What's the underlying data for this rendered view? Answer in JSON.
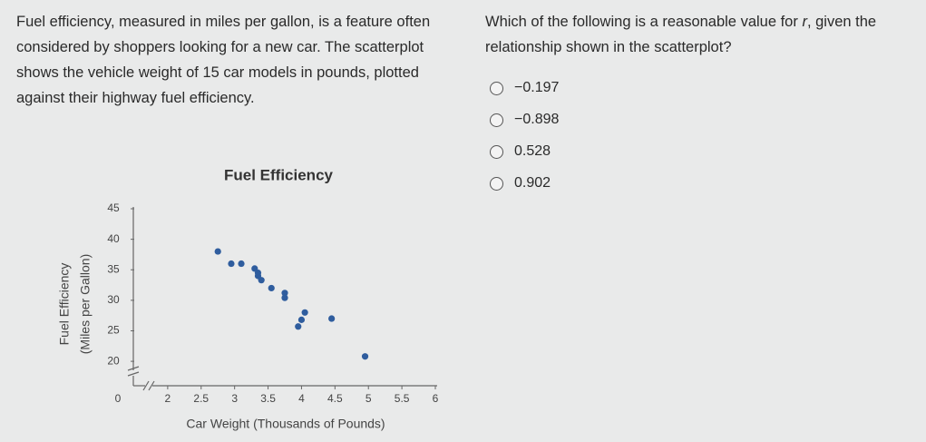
{
  "passage": "Fuel efficiency, measured in miles per gallon, is a feature often considered by shoppers looking for a new car. The scatterplot shows the vehicle weight of 15 car models in pounds, plotted against their highway fuel efficiency.",
  "question": {
    "before": "Which of the following is a reasonable value for ",
    "variable": "r",
    "after": ", given the relationship shown in the scatterplot?"
  },
  "options": [
    "−0.197",
    "−0.898",
    "0.528",
    "0.902"
  ],
  "chart_data": {
    "type": "scatter",
    "title": "Fuel Efficiency",
    "x_label": "Car Weight (Thousands of Pounds)",
    "y_label": [
      "Fuel Efficiency",
      "(Miles per Gallon)"
    ],
    "x_origin_label": "0",
    "x": [
      2.75,
      2.95,
      3.1,
      3.3,
      3.35,
      3.4,
      3.55,
      3.75,
      3.75,
      4.05,
      4.0,
      3.95,
      4.45,
      4.95,
      3.35
    ],
    "values": [
      38.0,
      36.0,
      36.0,
      35.2,
      34.0,
      33.3,
      32.0,
      31.2,
      30.4,
      28.0,
      26.8,
      25.7,
      27.0,
      20.8,
      34.5
    ],
    "color": "#2f5d9e",
    "xlim": [
      1.5,
      6
    ],
    "ylim": [
      16,
      45
    ],
    "xticks": [
      2,
      2.5,
      3,
      3.5,
      4,
      4.5,
      5,
      5.5,
      6
    ],
    "yticks": [
      20,
      25,
      30,
      35,
      40,
      45
    ]
  }
}
